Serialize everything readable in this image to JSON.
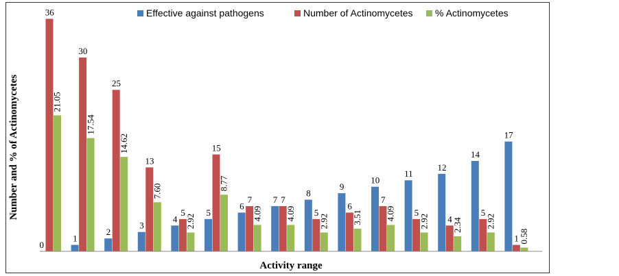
{
  "chart_data": {
    "type": "bar",
    "title": "",
    "xlabel": "Activity range",
    "ylabel": "Number and % of Actinomycetes",
    "ylim": [
      0,
      37
    ],
    "grid": false,
    "legend_position": "top-right",
    "categories": [
      "",
      "",
      "",
      "",
      "",
      "",
      "",
      "",
      "",
      "",
      "",
      "",
      "",
      "",
      ""
    ],
    "series": [
      {
        "name": "Effective against pathogens",
        "color": "#4a7ebb",
        "values": [
          0,
          1,
          2,
          3,
          4,
          5,
          6,
          7,
          8,
          9,
          10,
          11,
          12,
          14,
          17
        ],
        "labels": [
          "0",
          "1",
          "2",
          "3",
          "4",
          "5",
          "6",
          "7",
          "8",
          "9",
          "10",
          "11",
          "12",
          "14",
          "17"
        ]
      },
      {
        "name": "Number of Actinomycetes",
        "color": "#c0504d",
        "values": [
          36,
          30,
          25,
          13,
          5,
          15,
          7,
          7,
          5,
          6,
          7,
          5,
          4,
          5,
          1
        ],
        "labels": [
          "36",
          "30",
          "25",
          "13",
          "5",
          "15",
          "7",
          "7",
          "5",
          "6",
          "7",
          "5",
          "4",
          "5",
          "1"
        ]
      },
      {
        "name": "% Actinomycetes",
        "color": "#9bbb59",
        "values": [
          21.05,
          17.54,
          14.62,
          7.6,
          2.92,
          8.77,
          4.09,
          4.09,
          2.92,
          3.51,
          4.09,
          2.92,
          2.34,
          2.92,
          0.58
        ],
        "labels": [
          "21.05",
          "17.54",
          "14.62",
          "7.60",
          "2.92",
          "8.77",
          "4.09",
          "4.09",
          "2.92",
          "3.51",
          "4.09",
          "2.92",
          "2.34",
          "2.92",
          "0.58"
        ]
      }
    ]
  }
}
